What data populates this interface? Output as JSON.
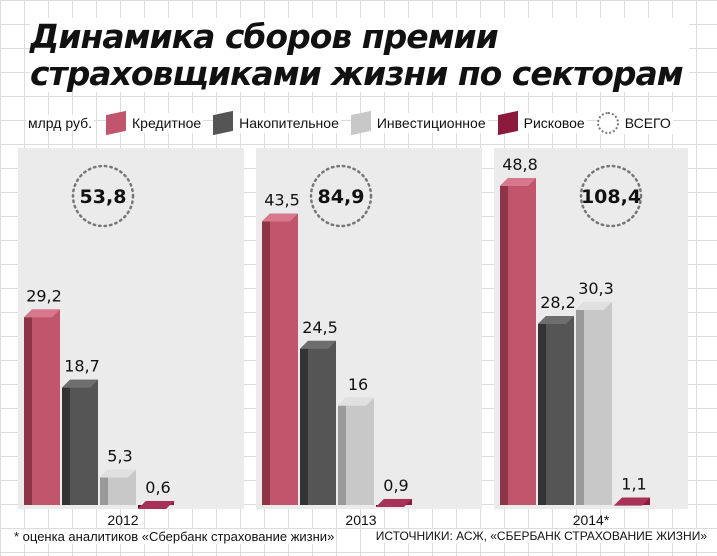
{
  "title": [
    "Динамика сборов премии",
    "страховщиками жизни по секторам"
  ],
  "legend": {
    "unit": "млрд руб.",
    "items": [
      {
        "label": "Кредитное",
        "color": "#c0556b"
      },
      {
        "label": "Накопительное",
        "color": "#555555"
      },
      {
        "label": "Инвестиционное",
        "color": "#c8c8c8"
      },
      {
        "label": "Рисковое",
        "color": "#8b1a3c"
      },
      {
        "label": "ВСЕГО",
        "color": "#777777"
      }
    ]
  },
  "chart_data": {
    "type": "bar",
    "categories": [
      "2012",
      "2013",
      "2014*"
    ],
    "series": [
      {
        "name": "Кредитное",
        "values": [
          29.2,
          43.5,
          48.8
        ],
        "labels": [
          "29,2",
          "43,5",
          "48,8"
        ]
      },
      {
        "name": "Накопительное",
        "values": [
          18.7,
          24.5,
          28.2
        ],
        "labels": [
          "18,7",
          "24,5",
          "28,2"
        ]
      },
      {
        "name": "Инвестиционное",
        "values": [
          5.3,
          16,
          30.3
        ],
        "labels": [
          "5,3",
          "16",
          "30,3"
        ]
      },
      {
        "name": "Рисковое",
        "values": [
          0.6,
          0.9,
          1.1
        ],
        "labels": [
          "0,6",
          "0,9",
          "1,1"
        ]
      }
    ],
    "totals": {
      "name": "ВСЕГО",
      "values": [
        53.8,
        84.9,
        108.4
      ],
      "labels": [
        "53,8",
        "84,9",
        "108,4"
      ]
    },
    "ylim": [
      0,
      50
    ],
    "legend_position": "top"
  },
  "footnote": "* оценка аналитиков «Сбербанк страхование жизни»",
  "sources": "ИСТОЧНИКИ: АСЖ, «СБЕРБАНК СТРАХОВАНИЕ ЖИЗНИ»"
}
